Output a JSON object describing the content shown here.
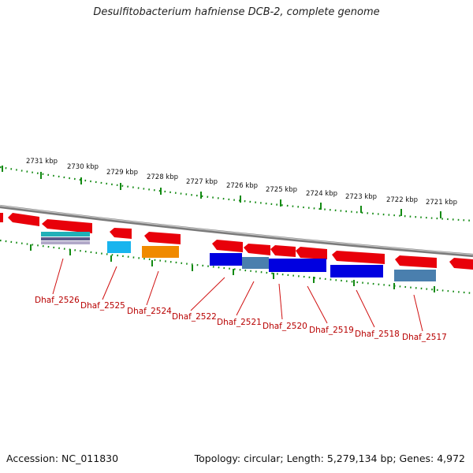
{
  "title": "Desulfitobacterium hafniense DCB-2, complete genome",
  "footer": {
    "accession": "Accession: NC_011830",
    "summary": "Topology: circular; Length: 5,279,134 bp; Genes: 4,972"
  },
  "colors": {
    "forward_gene": "#e8000a",
    "ruler": "#138a13",
    "backbone": "#888888",
    "label": "#b80000",
    "cds_blue": "#0000e0",
    "cds_steel": "#4a7fae",
    "cds_cyan": "#18b4ee",
    "cds_orange": "#f08a00",
    "cds_teal": "#20b0b8"
  },
  "kbp_ticks": [
    "2731 kbp",
    "2730 kbp",
    "2729 kbp",
    "2728 kbp",
    "2727 kbp",
    "2726 kbp",
    "2725 kbp",
    "2724 kbp",
    "2723 kbp",
    "2722 kbp",
    "2721 kbp"
  ],
  "gene_labels": [
    "Dhaf_2526",
    "Dhaf_2525",
    "Dhaf_2524",
    "Dhaf_2522",
    "Dhaf_2521",
    "Dhaf_2520",
    "Dhaf_2519",
    "Dhaf_2518",
    "Dhaf_2517"
  ]
}
